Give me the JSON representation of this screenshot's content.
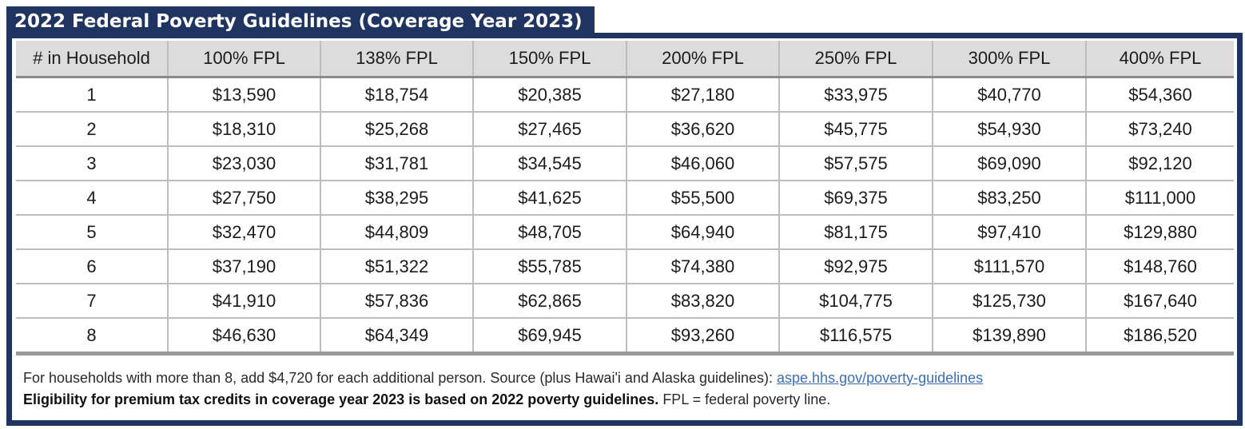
{
  "title": "2022 Federal Poverty Guidelines (Coverage Year 2023)",
  "columns": [
    "# in Household",
    "100% FPL",
    "138% FPL",
    "150% FPL",
    "200% FPL",
    "250% FPL",
    "300% FPL",
    "400% FPL"
  ],
  "rows": [
    [
      "1",
      "$13,590",
      "$18,754",
      "$20,385",
      "$27,180",
      "$33,975",
      "$40,770",
      "$54,360"
    ],
    [
      "2",
      "$18,310",
      "$25,268",
      "$27,465",
      "$36,620",
      "$45,775",
      "$54,930",
      "$73,240"
    ],
    [
      "3",
      "$23,030",
      "$31,781",
      "$34,545",
      "$46,060",
      "$57,575",
      "$69,090",
      "$92,120"
    ],
    [
      "4",
      "$27,750",
      "$38,295",
      "$41,625",
      "$55,500",
      "$69,375",
      "$83,250",
      "$111,000"
    ],
    [
      "5",
      "$32,470",
      "$44,809",
      "$48,705",
      "$64,940",
      "$81,175",
      "$97,410",
      "$129,880"
    ],
    [
      "6",
      "$37,190",
      "$51,322",
      "$55,785",
      "$74,380",
      "$92,975",
      "$111,570",
      "$148,760"
    ],
    [
      "7",
      "$41,910",
      "$57,836",
      "$62,865",
      "$83,820",
      "$104,775",
      "$125,730",
      "$167,640"
    ],
    [
      "8",
      "$46,630",
      "$64,349",
      "$69,945",
      "$93,260",
      "$116,575",
      "$139,890",
      "$186,520"
    ]
  ],
  "notes": {
    "line1_text": "For households with more than 8, add $4,720 for each additional person.  Source (plus Hawai'i and Alaska guidelines): ",
    "line1_link": "aspe.hhs.gov/poverty-guidelines",
    "line2_bold": "Eligibility for premium tax credits in coverage year 2023 is based on 2022 poverty guidelines.",
    "line2_text": "  FPL = federal poverty line."
  },
  "colors": {
    "navy": "#1f3461",
    "header_gray": "#dcdcdc",
    "link_blue": "#3b6fb5"
  }
}
